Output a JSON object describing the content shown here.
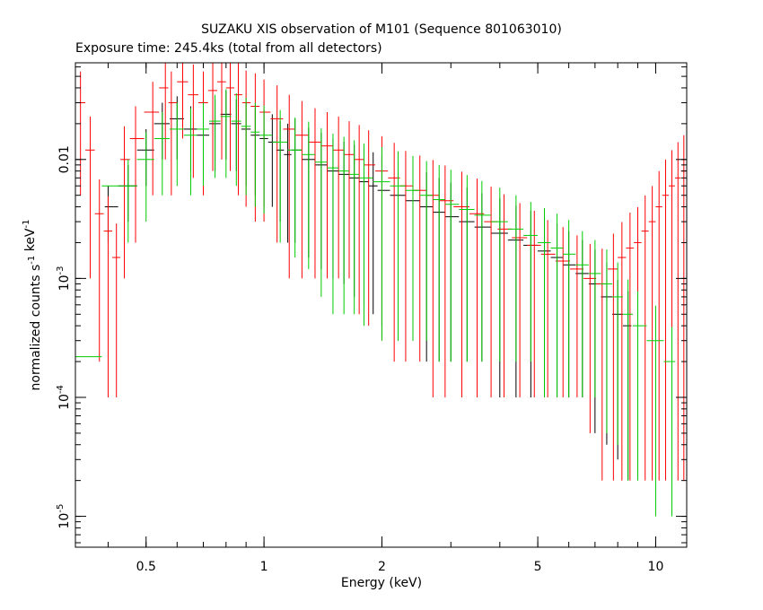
{
  "chart_data": {
    "type": "scatter",
    "title": "SUZAKU XIS observation of M101 (Sequence 801063010)",
    "subtitle": "Exposure time: 245.4ks (total from all detectors)",
    "xlabel": "Energy (keV)",
    "ylabel": "normalized counts s^-1 keV^-1",
    "x_scale": "log",
    "y_scale": "log",
    "xlim": [
      0.33,
      12.0
    ],
    "ylim": [
      5.5e-06,
      0.065
    ],
    "grid": false,
    "x_ticks": [
      {
        "value": 0.5,
        "label": "0.5"
      },
      {
        "value": 1,
        "label": "1"
      },
      {
        "value": 2,
        "label": "2"
      },
      {
        "value": 5,
        "label": "5"
      },
      {
        "value": 10,
        "label": "10"
      }
    ],
    "y_ticks": [
      {
        "value": 1e-05,
        "label": "10",
        "exp": "-5"
      },
      {
        "value": 0.0001,
        "label": "10",
        "exp": "-4"
      },
      {
        "value": 0.001,
        "label": "10",
        "exp": "-3"
      },
      {
        "value": 0.01,
        "label": "0.01",
        "exp": ""
      }
    ],
    "series": [
      {
        "color": "#000000",
        "points": [
          [
            0.4,
            0.004,
            0.002
          ],
          [
            0.45,
            0.006,
            0.003
          ],
          [
            0.5,
            0.012,
            0.006
          ],
          [
            0.55,
            0.02,
            0.01
          ],
          [
            0.6,
            0.022,
            0.012
          ],
          [
            0.65,
            0.018,
            0.01
          ],
          [
            0.7,
            0.016,
            0.01
          ],
          [
            0.75,
            0.02,
            0.012
          ],
          [
            0.8,
            0.024,
            0.014
          ],
          [
            0.85,
            0.02,
            0.012
          ],
          [
            0.9,
            0.018,
            0.012
          ],
          [
            0.95,
            0.016,
            0.011
          ],
          [
            1.0,
            0.015,
            0.011
          ],
          [
            1.05,
            0.014,
            0.01
          ],
          [
            1.1,
            0.012,
            0.009
          ],
          [
            1.15,
            0.011,
            0.009
          ],
          [
            1.2,
            0.012,
            0.01
          ],
          [
            1.3,
            0.01,
            0.0085
          ],
          [
            1.4,
            0.009,
            0.0078
          ],
          [
            1.5,
            0.008,
            0.007
          ],
          [
            1.6,
            0.0075,
            0.0066
          ],
          [
            1.7,
            0.007,
            0.0063
          ],
          [
            1.8,
            0.0065,
            0.0059
          ],
          [
            1.9,
            0.006,
            0.0055
          ],
          [
            2.0,
            0.0055,
            0.0051
          ],
          [
            2.2,
            0.005,
            0.0047
          ],
          [
            2.4,
            0.0045,
            0.0042
          ],
          [
            2.6,
            0.004,
            0.0038
          ],
          [
            2.8,
            0.0036,
            0.0034
          ],
          [
            3.0,
            0.0033,
            0.0031
          ],
          [
            3.3,
            0.003,
            0.0028
          ],
          [
            3.6,
            0.0027,
            0.0025
          ],
          [
            4.0,
            0.0024,
            0.0023
          ],
          [
            4.4,
            0.0021,
            0.002
          ],
          [
            4.8,
            0.0019,
            0.0018
          ],
          [
            5.2,
            0.0017,
            0.0016
          ],
          [
            5.6,
            0.0015,
            0.0014
          ],
          [
            6.0,
            0.0013,
            0.0012
          ],
          [
            6.5,
            0.0011,
            0.001
          ],
          [
            7.0,
            0.0009,
            0.00085
          ],
          [
            7.5,
            0.0007,
            0.00066
          ],
          [
            8.0,
            0.0005,
            0.00047
          ],
          [
            8.5,
            0.0004,
            0.00038
          ]
        ]
      },
      {
        "color": "#ff0000",
        "points": [
          [
            0.34,
            0.03,
            0.025
          ],
          [
            0.36,
            0.012,
            0.011
          ],
          [
            0.38,
            0.0035,
            0.0033
          ],
          [
            0.4,
            0.0025,
            0.0024
          ],
          [
            0.42,
            0.0015,
            0.0014
          ],
          [
            0.44,
            0.01,
            0.009
          ],
          [
            0.47,
            0.015,
            0.013
          ],
          [
            0.52,
            0.025,
            0.02
          ],
          [
            0.56,
            0.04,
            0.03
          ],
          [
            0.58,
            0.03,
            0.025
          ],
          [
            0.62,
            0.045,
            0.03
          ],
          [
            0.66,
            0.035,
            0.028
          ],
          [
            0.7,
            0.03,
            0.025
          ],
          [
            0.74,
            0.038,
            0.03
          ],
          [
            0.78,
            0.045,
            0.035
          ],
          [
            0.82,
            0.04,
            0.032
          ],
          [
            0.86,
            0.035,
            0.03
          ],
          [
            0.9,
            0.03,
            0.026
          ],
          [
            0.95,
            0.028,
            0.025
          ],
          [
            1.0,
            0.025,
            0.022
          ],
          [
            1.08,
            0.022,
            0.02
          ],
          [
            1.16,
            0.018,
            0.017
          ],
          [
            1.25,
            0.016,
            0.015
          ],
          [
            1.35,
            0.014,
            0.013
          ],
          [
            1.45,
            0.013,
            0.012
          ],
          [
            1.55,
            0.012,
            0.011
          ],
          [
            1.65,
            0.011,
            0.01
          ],
          [
            1.75,
            0.01,
            0.0095
          ],
          [
            1.85,
            0.009,
            0.0086
          ],
          [
            2.0,
            0.008,
            0.0077
          ],
          [
            2.15,
            0.007,
            0.0068
          ],
          [
            2.3,
            0.006,
            0.0058
          ],
          [
            2.5,
            0.0055,
            0.0053
          ],
          [
            2.7,
            0.005,
            0.0049
          ],
          [
            2.9,
            0.0045,
            0.0044
          ],
          [
            3.2,
            0.004,
            0.0039
          ],
          [
            3.5,
            0.0035,
            0.0034
          ],
          [
            3.8,
            0.003,
            0.0029
          ],
          [
            4.1,
            0.0026,
            0.0025
          ],
          [
            4.5,
            0.0022,
            0.0021
          ],
          [
            4.9,
            0.0019,
            0.0018
          ],
          [
            5.3,
            0.0016,
            0.0015
          ],
          [
            5.8,
            0.0014,
            0.0013
          ],
          [
            6.3,
            0.0012,
            0.0011
          ],
          [
            6.8,
            0.001,
            0.00095
          ],
          [
            7.3,
            0.0009,
            0.00088
          ],
          [
            7.8,
            0.0012,
            0.00118
          ],
          [
            8.2,
            0.0015,
            0.00148
          ],
          [
            8.6,
            0.0018,
            0.00178
          ],
          [
            9.0,
            0.002,
            0.00198
          ],
          [
            9.4,
            0.0025,
            0.00248
          ],
          [
            9.8,
            0.003,
            0.00298
          ],
          [
            10.2,
            0.004,
            0.00398
          ],
          [
            10.6,
            0.005,
            0.00498
          ],
          [
            11.0,
            0.006,
            0.00598
          ],
          [
            11.4,
            0.007,
            0.00698
          ],
          [
            11.8,
            0.008,
            0.00798
          ]
        ]
      },
      {
        "color": "#00cc00",
        "points": [
          [
            0.33,
            0.00022,
            0.0002
          ],
          [
            0.45,
            0.006,
            0.004
          ],
          [
            0.5,
            0.01,
            0.007
          ],
          [
            0.55,
            0.015,
            0.01
          ],
          [
            0.6,
            0.018,
            0.012
          ],
          [
            0.65,
            0.016,
            0.011
          ],
          [
            0.7,
            0.018,
            0.012
          ],
          [
            0.75,
            0.021,
            0.014
          ],
          [
            0.8,
            0.023,
            0.016
          ],
          [
            0.85,
            0.021,
            0.015
          ],
          [
            0.9,
            0.019,
            0.014
          ],
          [
            0.95,
            0.017,
            0.013
          ],
          [
            1.0,
            0.016,
            0.0125
          ],
          [
            1.1,
            0.014,
            0.012
          ],
          [
            1.2,
            0.012,
            0.0105
          ],
          [
            1.3,
            0.011,
            0.0098
          ],
          [
            1.4,
            0.0095,
            0.0088
          ],
          [
            1.5,
            0.0085,
            0.008
          ],
          [
            1.6,
            0.008,
            0.0075
          ],
          [
            1.7,
            0.0075,
            0.007
          ],
          [
            1.8,
            0.007,
            0.0066
          ],
          [
            2.0,
            0.0065,
            0.0062
          ],
          [
            2.2,
            0.006,
            0.0057
          ],
          [
            2.4,
            0.0055,
            0.0052
          ],
          [
            2.6,
            0.005,
            0.0047
          ],
          [
            2.8,
            0.0046,
            0.0044
          ],
          [
            3.0,
            0.0042,
            0.004
          ],
          [
            3.3,
            0.0038,
            0.0036
          ],
          [
            3.6,
            0.0034,
            0.0032
          ],
          [
            4.0,
            0.003,
            0.0028
          ],
          [
            4.4,
            0.0026,
            0.0024
          ],
          [
            4.8,
            0.0023,
            0.0021
          ],
          [
            5.2,
            0.002,
            0.0019
          ],
          [
            5.6,
            0.0018,
            0.0017
          ],
          [
            6.0,
            0.0016,
            0.0015
          ],
          [
            6.5,
            0.0013,
            0.0012
          ],
          [
            7.0,
            0.0011,
            0.001
          ],
          [
            7.5,
            0.0009,
            0.00085
          ],
          [
            8.0,
            0.0007,
            0.00066
          ],
          [
            8.5,
            0.0005,
            0.00048
          ],
          [
            9.0,
            0.0004,
            0.00038
          ],
          [
            10.0,
            0.0003,
            0.00029
          ],
          [
            11.0,
            0.0002,
            0.00019
          ]
        ]
      }
    ]
  }
}
